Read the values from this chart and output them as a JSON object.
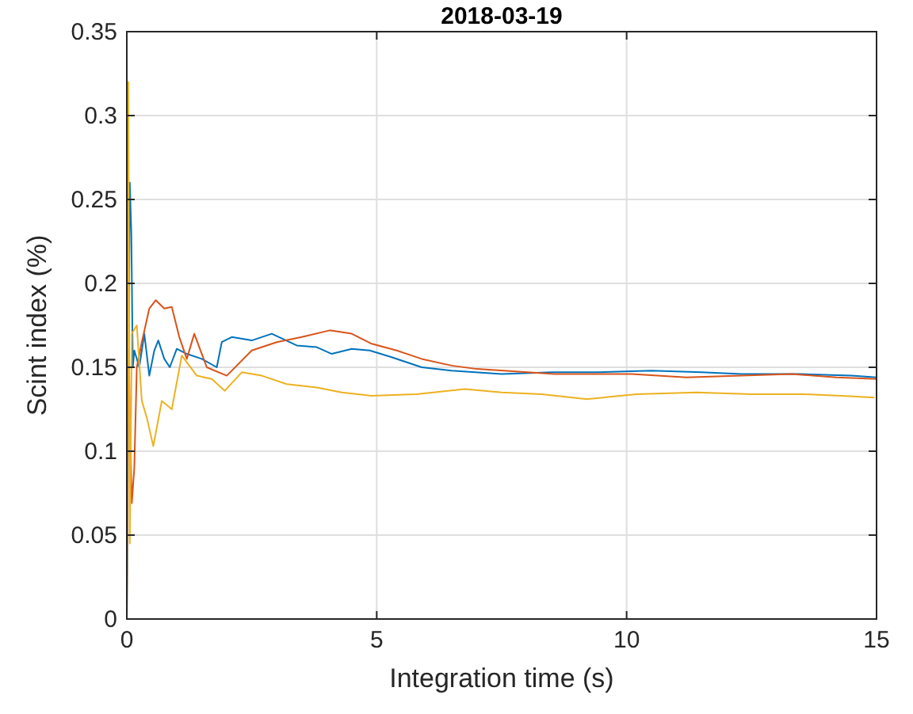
{
  "chart_data": {
    "type": "line",
    "title": "2018-03-19",
    "xlabel": "Integration time (s)",
    "ylabel": "Scint index (%)",
    "xlim": [
      0,
      15
    ],
    "ylim": [
      0,
      0.35
    ],
    "xticks": [
      0,
      5,
      10,
      15
    ],
    "yticks": [
      0,
      0.05,
      0.1,
      0.15,
      0.2,
      0.25,
      0.3,
      0.35
    ],
    "grid": true,
    "line_style": "solid",
    "marker": "none",
    "series": [
      {
        "color": "#0072bd",
        "x": [
          0,
          0.06,
          0.09,
          0.12,
          0.15,
          0.25,
          0.35,
          0.45,
          0.55,
          0.63,
          0.75,
          0.86,
          1.0,
          1.2,
          1.5,
          1.8,
          1.9,
          2.1,
          2.5,
          2.9,
          3.4,
          3.8,
          4.1,
          4.5,
          4.86,
          5.3,
          5.9,
          6.5,
          7.5,
          8.5,
          9.4,
          10.5,
          11.5,
          12.3,
          13.5,
          14.5,
          15
        ],
        "values": [
          0,
          0.26,
          0.23,
          0.15,
          0.16,
          0.15,
          0.17,
          0.145,
          0.16,
          0.166,
          0.155,
          0.15,
          0.161,
          0.158,
          0.155,
          0.15,
          0.165,
          0.168,
          0.166,
          0.17,
          0.163,
          0.162,
          0.158,
          0.161,
          0.16,
          0.156,
          0.15,
          0.148,
          0.146,
          0.147,
          0.147,
          0.148,
          0.147,
          0.146,
          0.146,
          0.145,
          0.144
        ]
      },
      {
        "color": "#d95319",
        "x": [
          0,
          0.03,
          0.06,
          0.1,
          0.15,
          0.2,
          0.3,
          0.45,
          0.58,
          0.75,
          0.9,
          1.05,
          1.2,
          1.35,
          1.6,
          2.0,
          2.5,
          3.0,
          3.5,
          4.06,
          4.5,
          4.9,
          5.4,
          5.9,
          6.5,
          7.0,
          8.56,
          10.1,
          11.2,
          12.3,
          13.3,
          14.2,
          15
        ],
        "values": [
          0,
          0.18,
          0.12,
          0.069,
          0.09,
          0.15,
          0.165,
          0.185,
          0.19,
          0.185,
          0.186,
          0.168,
          0.155,
          0.17,
          0.15,
          0.145,
          0.16,
          0.165,
          0.168,
          0.172,
          0.17,
          0.164,
          0.16,
          0.155,
          0.151,
          0.149,
          0.146,
          0.146,
          0.144,
          0.145,
          0.146,
          0.144,
          0.143
        ]
      },
      {
        "color": "#edb120",
        "x": [
          0,
          0.03,
          0.06,
          0.1,
          0.2,
          0.3,
          0.4,
          0.53,
          0.7,
          0.9,
          1.1,
          1.4,
          1.7,
          1.96,
          2.3,
          2.7,
          3.2,
          3.8,
          4.3,
          4.9,
          5.8,
          6.76,
          7.5,
          8.3,
          9.2,
          10.2,
          11.4,
          12.5,
          13.5,
          14.3,
          14.96
        ],
        "values": [
          0,
          0.32,
          0.045,
          0.17,
          0.175,
          0.13,
          0.12,
          0.103,
          0.13,
          0.125,
          0.157,
          0.145,
          0.143,
          0.136,
          0.147,
          0.145,
          0.14,
          0.138,
          0.135,
          0.133,
          0.134,
          0.137,
          0.135,
          0.134,
          0.131,
          0.134,
          0.135,
          0.134,
          0.134,
          0.133,
          0.132
        ]
      }
    ]
  }
}
